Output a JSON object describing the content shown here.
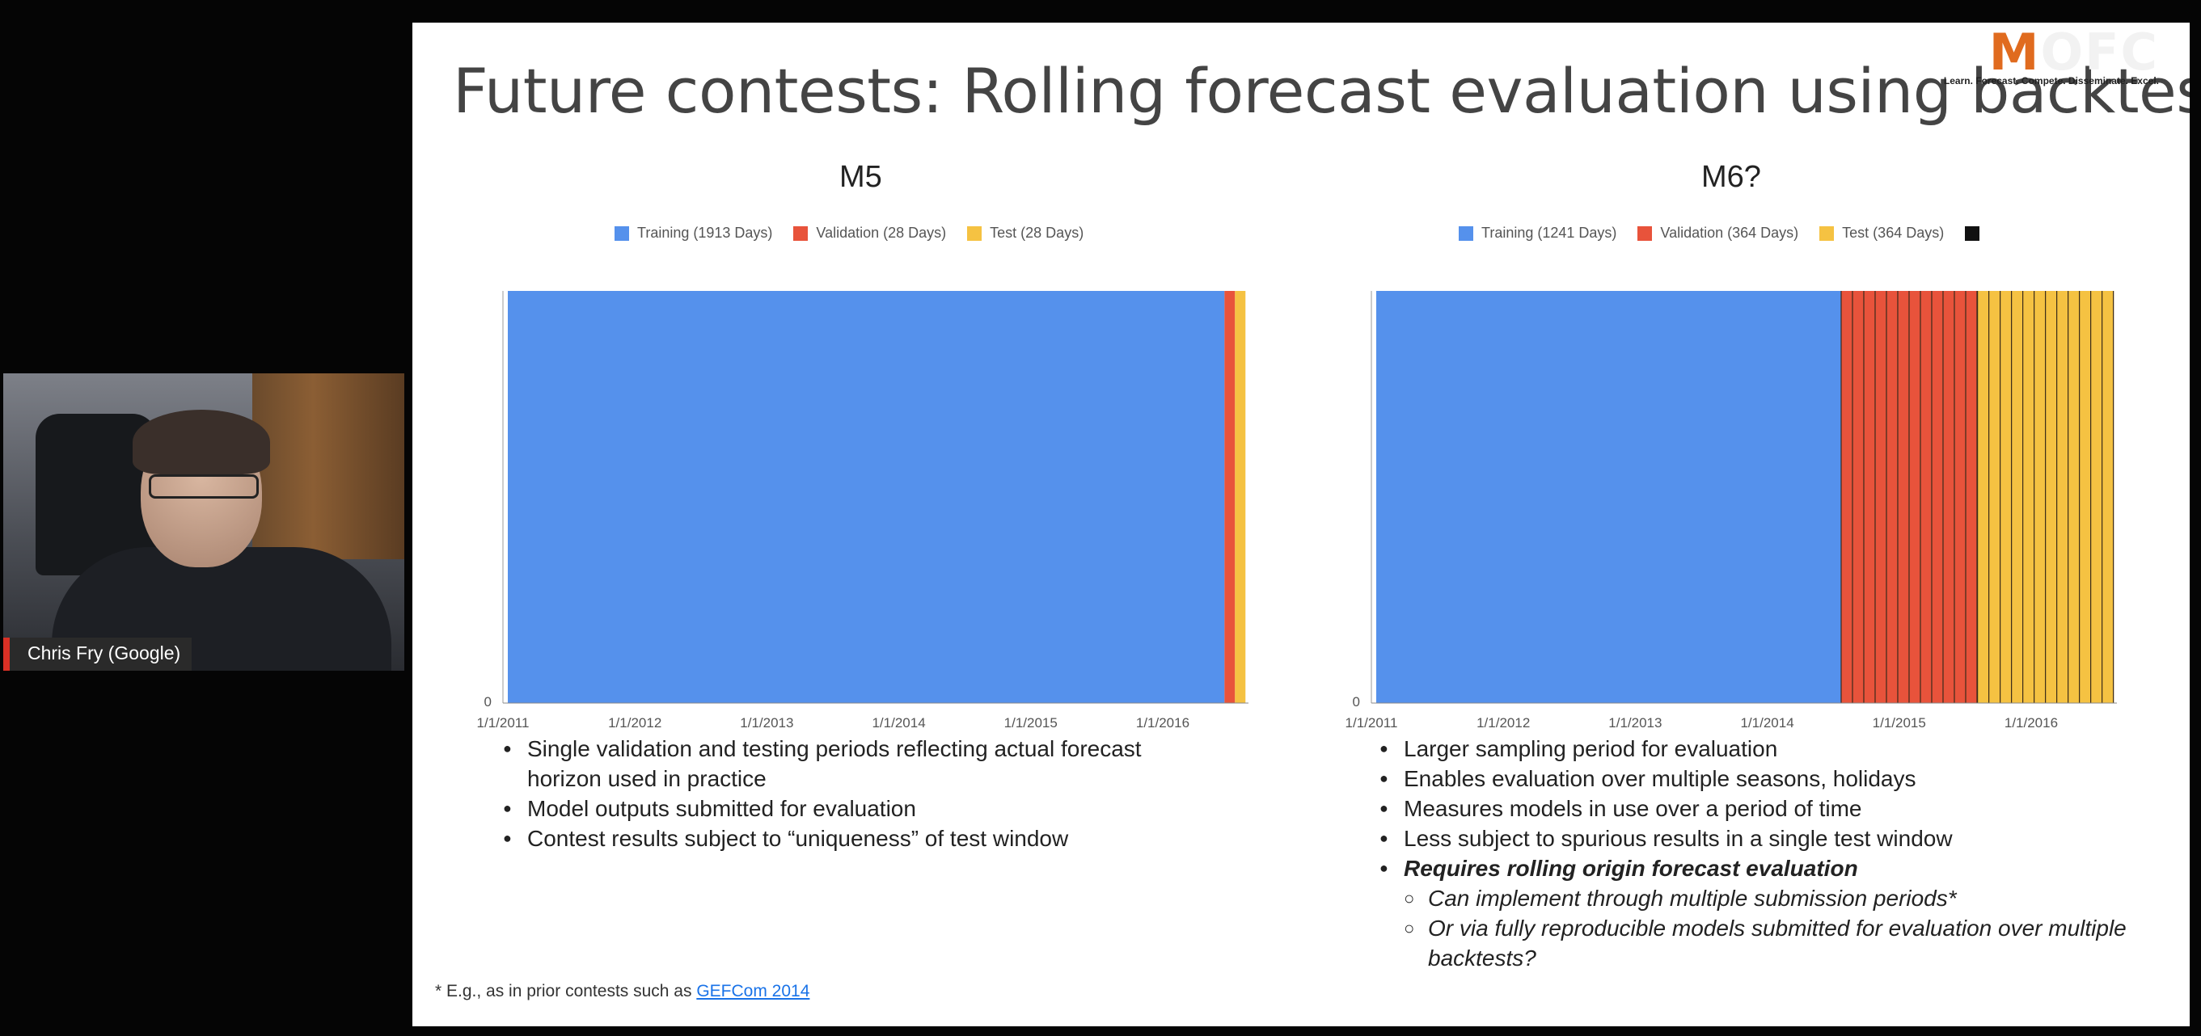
{
  "slide": {
    "title": "Future contests: Rolling forecast evaluation using backtesting?",
    "logo": {
      "letter_m": "M",
      "rest": "OFC",
      "tagline": "Learn. Forecast. Compete. Disseminate. Excel."
    },
    "footnote": {
      "text": "* E.g., as in prior contests such as ",
      "link": "GEFCom 2014"
    }
  },
  "charts": {
    "m5": {
      "title": "M5",
      "legend": [
        "Training (1913 Days)",
        "Validation (28 Days)",
        "Test (28 Days)"
      ],
      "zero_label": "0",
      "x_ticks": [
        "1/1/2011",
        "1/1/2012",
        "1/1/2013",
        "1/1/2014",
        "1/1/2015",
        "1/1/2016"
      ]
    },
    "m6": {
      "title": "M6?",
      "legend": [
        "Training (1241 Days)",
        "Validation (364 Days)",
        "Test (364 Days)"
      ],
      "zero_label": "0",
      "x_ticks": [
        "1/1/2011",
        "1/1/2012",
        "1/1/2013",
        "1/1/2014",
        "1/1/2015",
        "1/1/2016"
      ]
    }
  },
  "chart_data": [
    {
      "type": "bar",
      "title": "M5",
      "stacked_horizontal_timeline": true,
      "x_start": "1/1/2011",
      "segments": [
        {
          "name": "Training (1913 Days)",
          "days": 1913,
          "color": "#5591ec"
        },
        {
          "name": "Validation (28 Days)",
          "days": 28,
          "color": "#e8533b"
        },
        {
          "name": "Test (28 Days)",
          "days": 28,
          "color": "#f5c242"
        }
      ],
      "x_ticks": [
        "1/1/2011",
        "1/1/2012",
        "1/1/2013",
        "1/1/2014",
        "1/1/2015",
        "1/1/2016"
      ],
      "y_ticks": [
        "0"
      ],
      "legend_position": "top"
    },
    {
      "type": "bar",
      "title": "M6?",
      "stacked_horizontal_timeline": true,
      "x_start": "1/1/2011",
      "segments": [
        {
          "name": "Training (1241 Days)",
          "days": 1241,
          "color": "#5591ec"
        },
        {
          "name": "Validation (364 Days)",
          "days": 364,
          "color": "#e8533b",
          "striped": true
        },
        {
          "name": "Test (364 Days)",
          "days": 364,
          "color": "#f5c242",
          "striped": true
        }
      ],
      "x_ticks": [
        "1/1/2011",
        "1/1/2012",
        "1/1/2013",
        "1/1/2014",
        "1/1/2015",
        "1/1/2016"
      ],
      "y_ticks": [
        "0"
      ],
      "legend_position": "top"
    }
  ],
  "bullets": {
    "left": [
      "Single validation and testing periods reflecting actual forecast horizon used in practice",
      "Model outputs submitted for evaluation",
      "Contest results subject to “uniqueness” of test window"
    ],
    "right": [
      "Larger sampling period for evaluation",
      "Enables evaluation over multiple seasons, holidays",
      "Measures models in use over a period of time",
      "Less subject to spurious results in a single test window",
      "Requires rolling origin forecast evaluation"
    ],
    "right_sub": [
      "Can implement through multiple submission periods*",
      "Or via fully reproducible models submitted for evaluation over multiple backtests?"
    ]
  },
  "webcam": {
    "name": "Chris Fry (Google)"
  },
  "colors": {
    "training": "#5591ec",
    "validation": "#e8533b",
    "test": "#f5c242"
  }
}
